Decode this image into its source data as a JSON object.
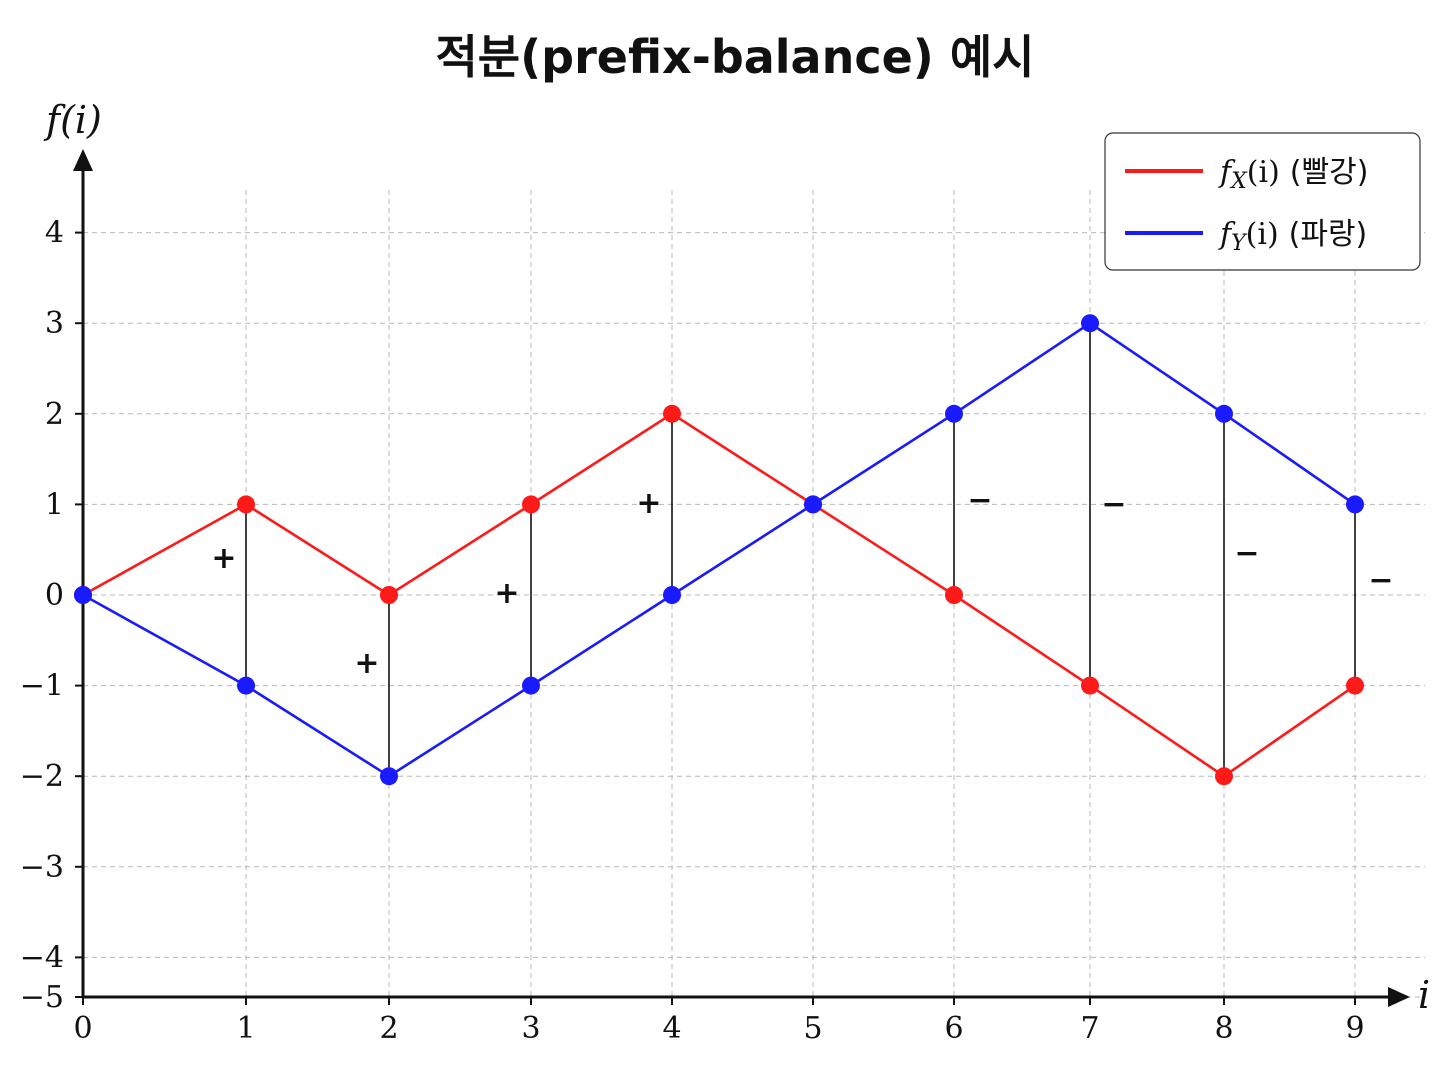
{
  "chart_data": {
    "type": "line",
    "title": "적분(prefix-balance) 예시",
    "xlabel": "i",
    "ylabel": "f(i)",
    "x": [
      0,
      1,
      2,
      3,
      4,
      5,
      6,
      7,
      8,
      9
    ],
    "xlim": [
      0,
      9
    ],
    "ylim": [
      -5,
      4
    ],
    "yticks": [
      -5,
      -4,
      -3,
      -2,
      -1,
      0,
      1,
      2,
      3,
      4
    ],
    "ytick_labels": [
      "−5",
      "−4",
      "−3",
      "−2",
      "−1",
      "0",
      "1",
      "2",
      "3",
      "4"
    ],
    "xtick_labels": [
      "0",
      "1",
      "2",
      "3",
      "4",
      "5",
      "6",
      "7",
      "8",
      "9"
    ],
    "grid": true,
    "legend_position": "top-right",
    "series": [
      {
        "name": "f_X(i) (빨강)",
        "legend_func": "f",
        "legend_sub": "X",
        "legend_args": "(i)",
        "legend_note": "(빨강)",
        "color": "#ff1a1a",
        "values": [
          0,
          1,
          0,
          1,
          2,
          1,
          0,
          -1,
          -2,
          -1
        ]
      },
      {
        "name": "f_Y(i) (파랑)",
        "legend_func": "f",
        "legend_sub": "Y",
        "legend_args": "(i)",
        "legend_note": "(파랑)",
        "color": "#1a1aff",
        "values": [
          0,
          -1,
          -2,
          -1,
          0,
          1,
          2,
          3,
          2,
          1
        ]
      }
    ],
    "annotations": [
      {
        "x": 1,
        "text": "+"
      },
      {
        "x": 2,
        "text": "+"
      },
      {
        "x": 3,
        "text": "+"
      },
      {
        "x": 4,
        "text": "+"
      },
      {
        "x": 6,
        "text": "−"
      },
      {
        "x": 7,
        "text": "−"
      },
      {
        "x": 8,
        "text": "−"
      },
      {
        "x": 9,
        "text": "−"
      }
    ]
  }
}
